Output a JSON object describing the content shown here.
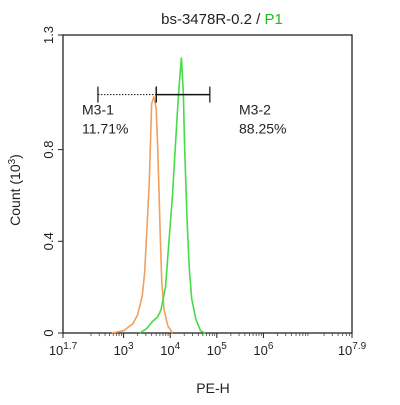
{
  "chart_data": {
    "type": "line",
    "title_main": "bs-3478R-0.2 / ",
    "title_gate": "P1",
    "title_gate_color": "#22bb22",
    "xlabel": "PE-H",
    "ylabel_prefix": "Count (10",
    "ylabel_exp": "3",
    "ylabel_suffix": ")",
    "x_scale": "log",
    "xlim_log10": [
      1.7,
      7.9
    ],
    "ylim": [
      0,
      1.3
    ],
    "x_ticks": [
      {
        "base": "10",
        "exp": "1.7",
        "log": 1.7
      },
      {
        "base": "10",
        "exp": "3",
        "log": 3
      },
      {
        "base": "10",
        "exp": "4",
        "log": 4
      },
      {
        "base": "10",
        "exp": "5",
        "log": 5
      },
      {
        "base": "10",
        "exp": "6",
        "log": 6
      },
      {
        "base": "10",
        "exp": "7.9",
        "log": 7.9
      }
    ],
    "y_ticks": [
      {
        "label": "0",
        "value": 0
      },
      {
        "label": "0.4",
        "value": 0.4
      },
      {
        "label": "0.8",
        "value": 0.8
      },
      {
        "label": "1.3",
        "value": 1.3
      }
    ],
    "markers": [
      {
        "name": "M3-1",
        "percent": "11.71%",
        "from_log": 2.45,
        "to_log": 3.7,
        "style": "dotted"
      },
      {
        "name": "M3-2",
        "percent": "88.25%",
        "from_log": 3.7,
        "to_log": 4.85,
        "style": "solid"
      }
    ],
    "marker_y": 1.04,
    "series": [
      {
        "color": "#f0a060",
        "points": [
          [
            2.75,
            0
          ],
          [
            3.0,
            0.01
          ],
          [
            3.2,
            0.04
          ],
          [
            3.3,
            0.08
          ],
          [
            3.4,
            0.16
          ],
          [
            3.45,
            0.26
          ],
          [
            3.5,
            0.45
          ],
          [
            3.55,
            0.65
          ],
          [
            3.58,
            0.85
          ],
          [
            3.6,
            1.0
          ],
          [
            3.65,
            1.03
          ],
          [
            3.7,
            0.98
          ],
          [
            3.73,
            0.82
          ],
          [
            3.76,
            0.62
          ],
          [
            3.79,
            0.4
          ],
          [
            3.82,
            0.22
          ],
          [
            3.87,
            0.1
          ],
          [
            3.95,
            0.03
          ],
          [
            4.05,
            0.0
          ]
        ]
      },
      {
        "color": "#44dd44",
        "points": [
          [
            3.35,
            0
          ],
          [
            3.5,
            0.02
          ],
          [
            3.62,
            0.05
          ],
          [
            3.73,
            0.07
          ],
          [
            3.8,
            0.1
          ],
          [
            3.9,
            0.2
          ],
          [
            3.98,
            0.42
          ],
          [
            4.05,
            0.6
          ],
          [
            4.1,
            0.78
          ],
          [
            4.15,
            0.95
          ],
          [
            4.2,
            1.1
          ],
          [
            4.24,
            1.2
          ],
          [
            4.28,
            1.05
          ],
          [
            4.31,
            0.8
          ],
          [
            4.36,
            0.5
          ],
          [
            4.41,
            0.28
          ],
          [
            4.46,
            0.15
          ],
          [
            4.55,
            0.06
          ],
          [
            4.65,
            0.01
          ],
          [
            4.75,
            0
          ]
        ]
      }
    ]
  }
}
